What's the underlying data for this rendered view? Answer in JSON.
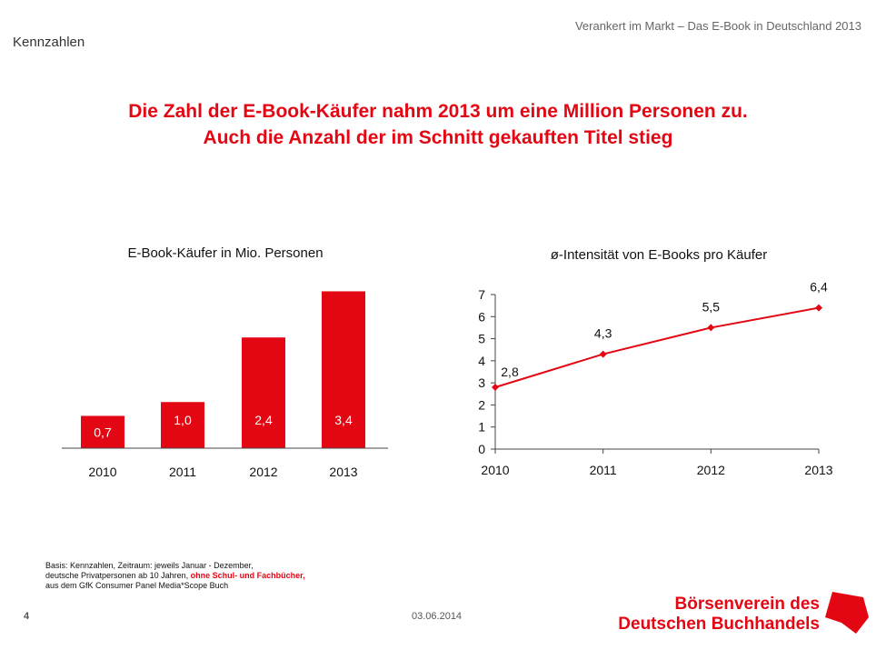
{
  "header": {
    "subtitle": "Verankert im Markt – Das E-Book in Deutschland 2013",
    "section": "Kennzahlen"
  },
  "headline": {
    "line1": "Die Zahl der E-Book-Käufer nahm 2013 um eine Million Personen zu.",
    "line2": "Auch die Anzahl der im Schnitt gekauften Titel stieg"
  },
  "colors": {
    "accent": "#e30613"
  },
  "chart_data": [
    {
      "type": "bar",
      "title": "E-Book-Käufer in Mio. Personen",
      "categories": [
        "2010",
        "2011",
        "2012",
        "2013"
      ],
      "values": [
        0.7,
        1.0,
        2.4,
        3.4
      ],
      "value_labels": [
        "0,7",
        "1,0",
        "2,4",
        "3,4"
      ],
      "xlabel": "",
      "ylabel": "",
      "ylim": [
        0,
        4
      ]
    },
    {
      "type": "line",
      "title": "ø-Intensität von E-Books pro Käufer",
      "x": [
        "2010",
        "2011",
        "2012",
        "2013"
      ],
      "values": [
        2.8,
        4.3,
        5.5,
        6.4
      ],
      "value_labels": [
        "2,8",
        "4,3",
        "5,5",
        "6,4"
      ],
      "ylim": [
        0,
        7
      ],
      "yticks": [
        "0",
        "1",
        "2",
        "3",
        "4",
        "5",
        "6",
        "7"
      ],
      "xlabel": "",
      "ylabel": ""
    }
  ],
  "footer": {
    "note_line1": "Basis: Kennzahlen, Zeitraum: jeweils Januar - Dezember,",
    "note_line2_a": "deutsche Privatpersonen ab 10 Jahren, ",
    "note_line2_b": "ohne Schul- und Fachbücher,",
    "note_line3": "aus dem GfK Consumer Panel Media*Scope Buch",
    "page": "4",
    "date": "03.06.2014",
    "logo_line1": "Börsenverein des",
    "logo_line2": "Deutschen Buchhandels"
  }
}
